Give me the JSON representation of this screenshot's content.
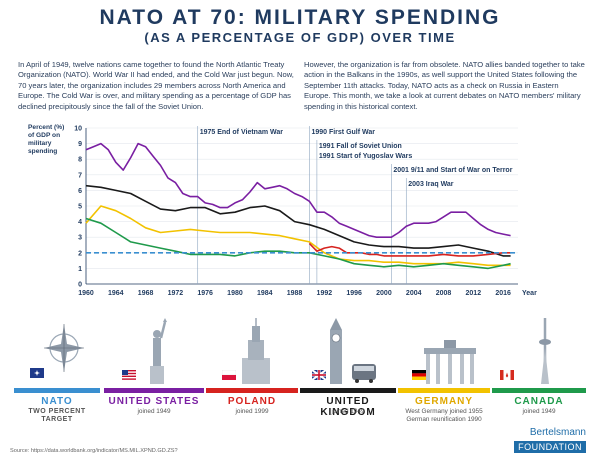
{
  "header": {
    "title": "NATO AT 70: MILITARY SPENDING",
    "subtitle": "(AS A PERCENTAGE OF GDP) OVER TIME"
  },
  "intro": {
    "left": "In April of 1949, twelve nations came together to found the North Atlantic Treaty Organization (NATO). World War II had ended, and the Cold War just begun. Now, 70 years later, the organization includes 29 members across North America and Europe. The Cold War is over, and military spending as a percentage of GDP has declined precipitously since the fall of the Soviet Union.",
    "right": "However, the organization is far from obsolete. NATO allies banded together to take action in the Balkans in the 1990s, as well support the United States following the September 11th attacks. Today, NATO acts as a check on Russia in Eastern Europe. This month, we take a look at current debates on NATO members' military spending in this historical context."
  },
  "chart_data": {
    "type": "line",
    "ylabel": "Percent (%) of GDP on military spending",
    "xlabel": "Year",
    "xlim": [
      1960,
      2018
    ],
    "ylim": [
      0,
      10
    ],
    "x_ticks": [
      1960,
      1964,
      1968,
      1972,
      1976,
      1980,
      1984,
      1988,
      1992,
      1996,
      2000,
      2004,
      2008,
      2012,
      2016
    ],
    "y_ticks": [
      0,
      1,
      2,
      3,
      4,
      5,
      6,
      7,
      8,
      9,
      10
    ],
    "annotations": [
      {
        "year": 1975,
        "label": "1975 End of Vietnam War"
      },
      {
        "year": 1990,
        "label": "1990 First Gulf War"
      },
      {
        "year": 1991,
        "label": "1991 Fall of Soviet Union"
      },
      {
        "year": 1991,
        "label": "1991 Start of Yugoslav Wars"
      },
      {
        "year": 2001,
        "label": "2001 9/11 and Start of War on Terror"
      },
      {
        "year": 2003,
        "label": "2003 Iraq War"
      }
    ],
    "target": {
      "name": "NATO Two Percent Target",
      "value": 2,
      "color": "#3a8fd0"
    },
    "series": [
      {
        "name": "United States",
        "color": "#7a1fa2",
        "x": [
          1960,
          1961,
          1962,
          1963,
          1964,
          1965,
          1966,
          1967,
          1968,
          1969,
          1970,
          1971,
          1972,
          1973,
          1974,
          1975,
          1976,
          1977,
          1978,
          1979,
          1980,
          1981,
          1982,
          1983,
          1984,
          1985,
          1986,
          1987,
          1988,
          1989,
          1990,
          1991,
          1992,
          1993,
          1994,
          1995,
          1996,
          1997,
          1998,
          1999,
          2000,
          2001,
          2002,
          2003,
          2004,
          2005,
          2006,
          2007,
          2008,
          2009,
          2010,
          2011,
          2012,
          2013,
          2014,
          2015,
          2016,
          2017
        ],
        "y": [
          8.6,
          8.8,
          9.0,
          8.6,
          7.8,
          7.3,
          8.1,
          9.0,
          8.8,
          8.2,
          7.6,
          6.8,
          6.5,
          5.8,
          5.6,
          5.6,
          5.2,
          5.1,
          4.9,
          4.9,
          5.2,
          5.4,
          5.9,
          6.5,
          6.1,
          6.2,
          6.3,
          6.1,
          5.8,
          5.6,
          5.3,
          4.6,
          4.6,
          4.3,
          3.9,
          3.7,
          3.5,
          3.3,
          3.1,
          3.0,
          3.0,
          3.0,
          3.3,
          3.7,
          3.9,
          3.9,
          3.9,
          4.0,
          4.3,
          4.6,
          4.6,
          4.6,
          4.2,
          3.8,
          3.5,
          3.3,
          3.2,
          3.1
        ]
      },
      {
        "name": "United Kingdom",
        "color": "#1a1a1a",
        "x": [
          1960,
          1962,
          1964,
          1966,
          1968,
          1970,
          1972,
          1974,
          1976,
          1978,
          1980,
          1982,
          1984,
          1986,
          1988,
          1990,
          1992,
          1994,
          1996,
          1998,
          2000,
          2002,
          2004,
          2006,
          2008,
          2010,
          2012,
          2014,
          2016,
          2017
        ],
        "y": [
          6.3,
          6.2,
          6.0,
          5.8,
          5.3,
          4.8,
          4.7,
          4.9,
          4.9,
          4.5,
          4.6,
          4.9,
          5.0,
          4.7,
          4.0,
          3.8,
          3.5,
          3.1,
          2.7,
          2.5,
          2.4,
          2.4,
          2.3,
          2.3,
          2.4,
          2.5,
          2.3,
          2.1,
          1.8,
          1.8
        ]
      },
      {
        "name": "Germany",
        "color": "#f2c200",
        "x": [
          1960,
          1962,
          1964,
          1966,
          1968,
          1970,
          1972,
          1974,
          1976,
          1978,
          1980,
          1982,
          1984,
          1986,
          1988,
          1990,
          1992,
          1994,
          1996,
          1998,
          2000,
          2002,
          2004,
          2006,
          2008,
          2010,
          2012,
          2014,
          2016,
          2017
        ],
        "y": [
          3.9,
          5.0,
          4.7,
          4.2,
          3.6,
          3.3,
          3.4,
          3.5,
          3.4,
          3.3,
          3.3,
          3.3,
          3.2,
          3.1,
          2.9,
          2.7,
          2.0,
          1.6,
          1.5,
          1.5,
          1.4,
          1.4,
          1.3,
          1.3,
          1.3,
          1.4,
          1.3,
          1.2,
          1.2,
          1.2
        ]
      },
      {
        "name": "Canada",
        "color": "#1f9a4b",
        "x": [
          1960,
          1962,
          1964,
          1966,
          1968,
          1970,
          1972,
          1974,
          1976,
          1978,
          1980,
          1982,
          1984,
          1986,
          1988,
          1990,
          1992,
          1994,
          1996,
          1998,
          2000,
          2002,
          2004,
          2006,
          2008,
          2010,
          2012,
          2014,
          2016,
          2017
        ],
        "y": [
          4.2,
          3.9,
          3.3,
          2.7,
          2.5,
          2.3,
          2.1,
          1.9,
          1.9,
          1.9,
          1.8,
          2.0,
          2.1,
          2.1,
          2.0,
          2.0,
          1.8,
          1.6,
          1.3,
          1.2,
          1.1,
          1.2,
          1.1,
          1.2,
          1.3,
          1.2,
          1.1,
          1.0,
          1.2,
          1.3
        ]
      },
      {
        "name": "Poland",
        "color": "#d6231f",
        "x": [
          1990,
          1991,
          1992,
          1993,
          1994,
          1995,
          1996,
          1997,
          1998,
          1999,
          2000,
          2002,
          2004,
          2006,
          2008,
          2010,
          2012,
          2014,
          2016,
          2017
        ],
        "y": [
          2.6,
          2.1,
          2.3,
          2.4,
          2.3,
          2.0,
          2.0,
          2.0,
          1.9,
          1.9,
          1.8,
          1.8,
          1.8,
          1.8,
          1.9,
          1.8,
          1.8,
          1.9,
          2.0,
          2.0
        ]
      }
    ]
  },
  "countries": [
    {
      "name": "NATO",
      "note": "TWO PERCENT TARGET",
      "color": "#3a8fd0"
    },
    {
      "name": "UNITED STATES",
      "note": "joined 1949",
      "color": "#7a1fa2"
    },
    {
      "name": "POLAND",
      "note": "joined 1999",
      "color": "#d6231f"
    },
    {
      "name": "UNITED KINGDOM",
      "note": "joined 1949",
      "color": "#1a1a1a"
    },
    {
      "name": "GERMANY",
      "note": "West Germany joined 1955\nGerman reunification 1990",
      "color": "#f2c200"
    },
    {
      "name": "CANADA",
      "note": "joined 1949",
      "color": "#1f9a4b"
    }
  ],
  "footer": {
    "source": "Source: https://data.worldbank.org/indicator/MS.MIL.XPND.GD.ZS?",
    "logo_top": "Bertelsmann",
    "logo_bottom": "FOUNDATION"
  }
}
